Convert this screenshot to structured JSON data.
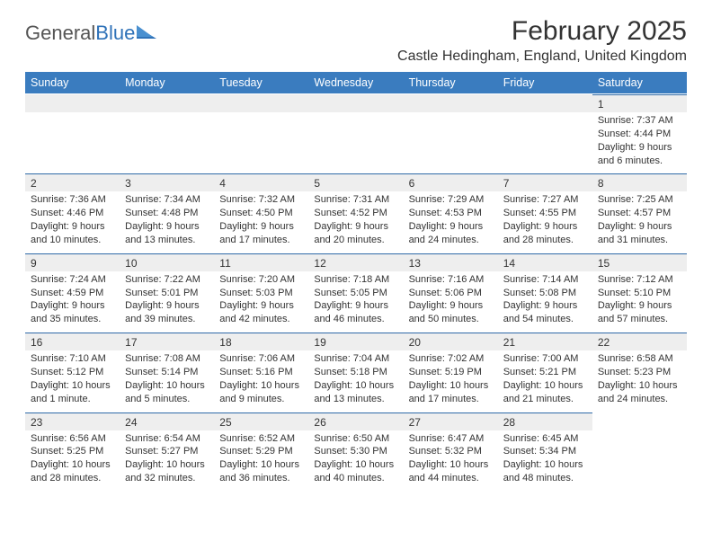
{
  "brand": {
    "part1": "General",
    "part2": "Blue"
  },
  "title": "February 2025",
  "location": "Castle Hedingham, England, United Kingdom",
  "colors": {
    "header_bg": "#3a7cbf",
    "header_text": "#ffffff",
    "daynum_bg": "#eeeeee",
    "daynum_border": "#2f6aa8",
    "text": "#333333",
    "brand_gray": "#555555",
    "brand_blue": "#2f72b8",
    "background": "#ffffff"
  },
  "day_headers": [
    "Sunday",
    "Monday",
    "Tuesday",
    "Wednesday",
    "Thursday",
    "Friday",
    "Saturday"
  ],
  "weeks": [
    [
      null,
      null,
      null,
      null,
      null,
      null,
      {
        "n": "1",
        "sunrise": "7:37 AM",
        "sunset": "4:44 PM",
        "daylight": "9 hours and 6 minutes."
      }
    ],
    [
      {
        "n": "2",
        "sunrise": "7:36 AM",
        "sunset": "4:46 PM",
        "daylight": "9 hours and 10 minutes."
      },
      {
        "n": "3",
        "sunrise": "7:34 AM",
        "sunset": "4:48 PM",
        "daylight": "9 hours and 13 minutes."
      },
      {
        "n": "4",
        "sunrise": "7:32 AM",
        "sunset": "4:50 PM",
        "daylight": "9 hours and 17 minutes."
      },
      {
        "n": "5",
        "sunrise": "7:31 AM",
        "sunset": "4:52 PM",
        "daylight": "9 hours and 20 minutes."
      },
      {
        "n": "6",
        "sunrise": "7:29 AM",
        "sunset": "4:53 PM",
        "daylight": "9 hours and 24 minutes."
      },
      {
        "n": "7",
        "sunrise": "7:27 AM",
        "sunset": "4:55 PM",
        "daylight": "9 hours and 28 minutes."
      },
      {
        "n": "8",
        "sunrise": "7:25 AM",
        "sunset": "4:57 PM",
        "daylight": "9 hours and 31 minutes."
      }
    ],
    [
      {
        "n": "9",
        "sunrise": "7:24 AM",
        "sunset": "4:59 PM",
        "daylight": "9 hours and 35 minutes."
      },
      {
        "n": "10",
        "sunrise": "7:22 AM",
        "sunset": "5:01 PM",
        "daylight": "9 hours and 39 minutes."
      },
      {
        "n": "11",
        "sunrise": "7:20 AM",
        "sunset": "5:03 PM",
        "daylight": "9 hours and 42 minutes."
      },
      {
        "n": "12",
        "sunrise": "7:18 AM",
        "sunset": "5:05 PM",
        "daylight": "9 hours and 46 minutes."
      },
      {
        "n": "13",
        "sunrise": "7:16 AM",
        "sunset": "5:06 PM",
        "daylight": "9 hours and 50 minutes."
      },
      {
        "n": "14",
        "sunrise": "7:14 AM",
        "sunset": "5:08 PM",
        "daylight": "9 hours and 54 minutes."
      },
      {
        "n": "15",
        "sunrise": "7:12 AM",
        "sunset": "5:10 PM",
        "daylight": "9 hours and 57 minutes."
      }
    ],
    [
      {
        "n": "16",
        "sunrise": "7:10 AM",
        "sunset": "5:12 PM",
        "daylight": "10 hours and 1 minute."
      },
      {
        "n": "17",
        "sunrise": "7:08 AM",
        "sunset": "5:14 PM",
        "daylight": "10 hours and 5 minutes."
      },
      {
        "n": "18",
        "sunrise": "7:06 AM",
        "sunset": "5:16 PM",
        "daylight": "10 hours and 9 minutes."
      },
      {
        "n": "19",
        "sunrise": "7:04 AM",
        "sunset": "5:18 PM",
        "daylight": "10 hours and 13 minutes."
      },
      {
        "n": "20",
        "sunrise": "7:02 AM",
        "sunset": "5:19 PM",
        "daylight": "10 hours and 17 minutes."
      },
      {
        "n": "21",
        "sunrise": "7:00 AM",
        "sunset": "5:21 PM",
        "daylight": "10 hours and 21 minutes."
      },
      {
        "n": "22",
        "sunrise": "6:58 AM",
        "sunset": "5:23 PM",
        "daylight": "10 hours and 24 minutes."
      }
    ],
    [
      {
        "n": "23",
        "sunrise": "6:56 AM",
        "sunset": "5:25 PM",
        "daylight": "10 hours and 28 minutes."
      },
      {
        "n": "24",
        "sunrise": "6:54 AM",
        "sunset": "5:27 PM",
        "daylight": "10 hours and 32 minutes."
      },
      {
        "n": "25",
        "sunrise": "6:52 AM",
        "sunset": "5:29 PM",
        "daylight": "10 hours and 36 minutes."
      },
      {
        "n": "26",
        "sunrise": "6:50 AM",
        "sunset": "5:30 PM",
        "daylight": "10 hours and 40 minutes."
      },
      {
        "n": "27",
        "sunrise": "6:47 AM",
        "sunset": "5:32 PM",
        "daylight": "10 hours and 44 minutes."
      },
      {
        "n": "28",
        "sunrise": "6:45 AM",
        "sunset": "5:34 PM",
        "daylight": "10 hours and 48 minutes."
      },
      null
    ]
  ],
  "labels": {
    "sunrise": "Sunrise:",
    "sunset": "Sunset:",
    "daylight": "Daylight:"
  }
}
